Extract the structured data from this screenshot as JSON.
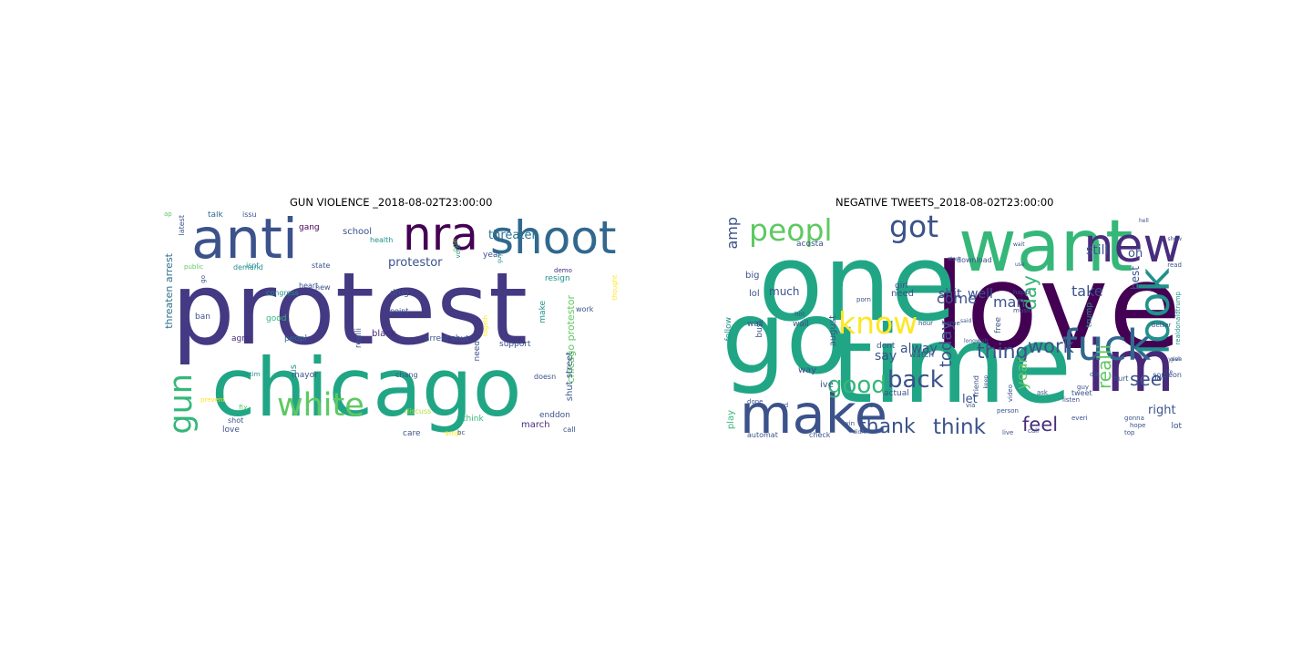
{
  "figure": {
    "panels": [
      {
        "id": "gun-violence",
        "title": "GUN VIOLENCE _2018-08-02T23:00:00",
        "words": [
          {
            "text": "protest",
            "weight": 1.0,
            "color": "#443983"
          },
          {
            "text": "chicago",
            "weight": 0.8,
            "color": "#21a685"
          },
          {
            "text": "anti",
            "weight": 0.55,
            "color": "#3b528b"
          },
          {
            "text": "nra",
            "weight": 0.45,
            "color": "#440154"
          },
          {
            "text": "shoot",
            "weight": 0.45,
            "color": "#31688e"
          },
          {
            "text": "white",
            "weight": 0.32,
            "color": "#5ec962"
          },
          {
            "text": "gun",
            "weight": 0.32,
            "color": "#35b779"
          },
          {
            "text": "threaten",
            "weight": 0.12,
            "color": "#2c728e"
          },
          {
            "text": "protestor",
            "weight": 0.12,
            "color": "#3b528b"
          },
          {
            "text": "threaten arrest",
            "weight": 0.1,
            "color": "#2c728e"
          },
          {
            "text": "chicago protestor",
            "weight": 0.1,
            "color": "#5ec962"
          },
          {
            "text": "shut street",
            "weight": 0.09,
            "color": "#3b528b"
          },
          {
            "text": "march",
            "weight": 0.09,
            "color": "#472d7b"
          },
          {
            "text": "black",
            "weight": 0.09,
            "color": "#482878"
          },
          {
            "text": "school",
            "weight": 0.09,
            "color": "#3b528b"
          },
          {
            "text": "gang",
            "weight": 0.08,
            "color": "#440154"
          },
          {
            "text": "talk",
            "weight": 0.08,
            "color": "#31688e"
          },
          {
            "text": "issu",
            "weight": 0.07,
            "color": "#3b528b"
          },
          {
            "text": "latest",
            "weight": 0.07,
            "color": "#3b528b"
          },
          {
            "text": "public",
            "weight": 0.06,
            "color": "#5ec962"
          },
          {
            "text": "demand",
            "weight": 0.07,
            "color": "#21918c"
          },
          {
            "text": "isnt",
            "weight": 0.07,
            "color": "#21918c"
          },
          {
            "text": "state",
            "weight": 0.07,
            "color": "#3b528b"
          },
          {
            "text": "health",
            "weight": 0.07,
            "color": "#21918c"
          },
          {
            "text": "year",
            "weight": 0.08,
            "color": "#3b528b"
          },
          {
            "text": "resign",
            "weight": 0.08,
            "color": "#21918c"
          },
          {
            "text": "demo",
            "weight": 0.06,
            "color": "#472d7b"
          },
          {
            "text": "one",
            "weight": 0.07,
            "color": "#5ec962"
          },
          {
            "text": "vote",
            "weight": 0.06,
            "color": "#21918c"
          },
          {
            "text": "guy",
            "weight": 0.05,
            "color": "#21918c"
          },
          {
            "text": "go",
            "weight": 0.06,
            "color": "#3b528b"
          },
          {
            "text": "congress",
            "weight": 0.07,
            "color": "#21918c"
          },
          {
            "text": "good",
            "weight": 0.08,
            "color": "#35b779"
          },
          {
            "text": "drug",
            "weight": 0.08,
            "color": "#3b528b"
          },
          {
            "text": "point",
            "weight": 0.07,
            "color": "#3b528b"
          },
          {
            "text": "work",
            "weight": 0.07,
            "color": "#3b528b"
          },
          {
            "text": "ban",
            "weight": 0.08,
            "color": "#3b528b"
          },
          {
            "text": "agre",
            "weight": 0.08,
            "color": "#472d7b"
          },
          {
            "text": "peopl",
            "weight": 0.08,
            "color": "#31688e"
          },
          {
            "text": "realli",
            "weight": 0.08,
            "color": "#3b528b"
          },
          {
            "text": "arrest shut",
            "weight": 0.08,
            "color": "#3b528b"
          },
          {
            "text": "support",
            "weight": 0.08,
            "color": "#3b528b"
          },
          {
            "text": "make",
            "weight": 0.08,
            "color": "#21918c"
          },
          {
            "text": "thought",
            "weight": 0.06,
            "color": "#fde725"
          },
          {
            "text": "victim",
            "weight": 0.06,
            "color": "#21918c"
          },
          {
            "text": "mayor",
            "weight": 0.08,
            "color": "#3b528b"
          },
          {
            "text": "us",
            "weight": 0.09,
            "color": "#21918c"
          },
          {
            "text": "chang",
            "weight": 0.07,
            "color": "#3b528b"
          },
          {
            "text": "need",
            "weight": 0.08,
            "color": "#3b528b"
          },
          {
            "text": "togeth",
            "weight": 0.06,
            "color": "#fde725"
          },
          {
            "text": "prevent",
            "weight": 0.06,
            "color": "#fde725"
          },
          {
            "text": "fix",
            "weight": 0.07,
            "color": "#5ec962"
          },
          {
            "text": "shot",
            "weight": 0.07,
            "color": "#3b528b"
          },
          {
            "text": "love",
            "weight": 0.08,
            "color": "#3b528b"
          },
          {
            "text": "discuss",
            "weight": 0.07,
            "color": "#b5de2b"
          },
          {
            "text": "care",
            "weight": 0.08,
            "color": "#3b528b"
          },
          {
            "text": "think",
            "weight": 0.08,
            "color": "#35b779"
          },
          {
            "text": "amp",
            "weight": 0.07,
            "color": "#fde725"
          },
          {
            "text": "bc",
            "weight": 0.06,
            "color": "#3b528b"
          },
          {
            "text": "doesn",
            "weight": 0.07,
            "color": "#3b528b"
          },
          {
            "text": "enddon",
            "weight": 0.08,
            "color": "#3b528b"
          },
          {
            "text": "call",
            "weight": 0.07,
            "color": "#3b528b"
          },
          {
            "text": "heart",
            "weight": 0.07,
            "color": "#3b528b"
          },
          {
            "text": "new",
            "weight": 0.07,
            "color": "#3b528b"
          },
          {
            "text": "ap",
            "weight": 0.06,
            "color": "#5ec962"
          }
        ]
      },
      {
        "id": "negative-tweets",
        "title": "NEGATIVE TWEETS_2018-08-02T23:00:00",
        "words": [
          {
            "text": "love",
            "weight": 1.0,
            "color": "#440154"
          },
          {
            "text": "one",
            "weight": 0.9,
            "color": "#21a685"
          },
          {
            "text": "time",
            "weight": 0.9,
            "color": "#21a685"
          },
          {
            "text": "go",
            "weight": 0.85,
            "color": "#21a685"
          },
          {
            "text": "want",
            "weight": 0.6,
            "color": "#35b779"
          },
          {
            "text": "im",
            "weight": 0.6,
            "color": "#482878"
          },
          {
            "text": "make",
            "weight": 0.45,
            "color": "#3b528b"
          },
          {
            "text": "new",
            "weight": 0.4,
            "color": "#472d7b"
          },
          {
            "text": "fuck",
            "weight": 0.35,
            "color": "#31688e"
          },
          {
            "text": "look",
            "weight": 0.35,
            "color": "#21918c"
          },
          {
            "text": "peopl",
            "weight": 0.25,
            "color": "#5ec962"
          },
          {
            "text": "got",
            "weight": 0.25,
            "color": "#3b528b"
          },
          {
            "text": "know",
            "weight": 0.25,
            "color": "#fde725"
          },
          {
            "text": "back",
            "weight": 0.2,
            "color": "#3b528b"
          },
          {
            "text": "good",
            "weight": 0.2,
            "color": "#35b779"
          },
          {
            "text": "think",
            "weight": 0.18,
            "color": "#3b528b"
          },
          {
            "text": "thank",
            "weight": 0.17,
            "color": "#3b528b"
          },
          {
            "text": "thing",
            "weight": 0.17,
            "color": "#3b528b"
          },
          {
            "text": "work",
            "weight": 0.16,
            "color": "#3b528b"
          },
          {
            "text": "feel",
            "weight": 0.16,
            "color": "#472d7b"
          },
          {
            "text": "day",
            "weight": 0.16,
            "color": "#35b779"
          },
          {
            "text": "realli",
            "weight": 0.15,
            "color": "#5ec962"
          },
          {
            "text": "see",
            "weight": 0.15,
            "color": "#3b528b"
          },
          {
            "text": "today",
            "weight": 0.14,
            "color": "#3b528b"
          },
          {
            "text": "year",
            "weight": 0.12,
            "color": "#5ec962"
          },
          {
            "text": "come",
            "weight": 0.12,
            "color": "#3b528b"
          },
          {
            "text": "amp",
            "weight": 0.12,
            "color": "#3b528b"
          },
          {
            "text": "man",
            "weight": 0.12,
            "color": "#3b528b"
          },
          {
            "text": "take",
            "weight": 0.12,
            "color": "#3b528b"
          },
          {
            "text": "shit",
            "weight": 0.11,
            "color": "#3b528b"
          },
          {
            "text": "well",
            "weight": 0.11,
            "color": "#3b528b"
          },
          {
            "text": "still",
            "weight": 0.11,
            "color": "#3b528b"
          },
          {
            "text": "oh",
            "weight": 0.1,
            "color": "#3b528b"
          },
          {
            "text": "say",
            "weight": 0.11,
            "color": "#3b528b"
          },
          {
            "text": "alway",
            "weight": 0.11,
            "color": "#3b528b"
          },
          {
            "text": "let",
            "weight": 0.1,
            "color": "#3b528b"
          },
          {
            "text": "right",
            "weight": 0.1,
            "color": "#3b528b"
          },
          {
            "text": "best",
            "weight": 0.09,
            "color": "#3b528b"
          },
          {
            "text": "much",
            "weight": 0.09,
            "color": "#3b528b"
          },
          {
            "text": "need",
            "weight": 0.08,
            "color": "#3b528b"
          },
          {
            "text": "big",
            "weight": 0.08,
            "color": "#3b528b"
          },
          {
            "text": "lol",
            "weight": 0.08,
            "color": "#3b528b"
          },
          {
            "text": "way",
            "weight": 0.08,
            "color": "#3b528b"
          },
          {
            "text": "ive",
            "weight": 0.08,
            "color": "#3b528b"
          },
          {
            "text": "play",
            "weight": 0.08,
            "color": "#35b779"
          },
          {
            "text": "august",
            "weight": 0.08,
            "color": "#3b528b"
          },
          {
            "text": "dont",
            "weight": 0.07,
            "color": "#3b528b"
          },
          {
            "text": "watch",
            "weight": 0.07,
            "color": "#3b528b"
          },
          {
            "text": "follow",
            "weight": 0.07,
            "color": "#21918c"
          },
          {
            "text": "busi",
            "weight": 0.07,
            "color": "#3b528b"
          },
          {
            "text": "wall",
            "weight": 0.07,
            "color": "#3b528b"
          },
          {
            "text": "wall",
            "weight": 0.07,
            "color": "#3b528b"
          },
          {
            "text": "acosta",
            "weight": 0.07,
            "color": "#3b528b"
          },
          {
            "text": "girl",
            "weight": 0.07,
            "color": "#3b528b"
          },
          {
            "text": "trump",
            "weight": 0.07,
            "color": "#21918c"
          },
          {
            "text": "free",
            "weight": 0.07,
            "color": "#3b528b"
          },
          {
            "text": "don",
            "weight": 0.07,
            "color": "#3b528b"
          },
          {
            "text": "lot",
            "weight": 0.07,
            "color": "#3b528b"
          },
          {
            "text": "actual",
            "weight": 0.07,
            "color": "#3b528b"
          },
          {
            "text": "automat",
            "weight": 0.06,
            "color": "#3b528b"
          },
          {
            "text": "check",
            "weight": 0.06,
            "color": "#3b528b"
          },
          {
            "text": "download",
            "weight": 0.06,
            "color": "#3b528b"
          },
          {
            "text": "music",
            "weight": 0.05,
            "color": "#3b528b"
          },
          {
            "text": "happi",
            "weight": 0.05,
            "color": "#3b528b"
          },
          {
            "text": "tweet",
            "weight": 0.06,
            "color": "#3b528b"
          },
          {
            "text": "hurt",
            "weight": 0.06,
            "color": "#3b528b"
          },
          {
            "text": "someon",
            "weight": 0.06,
            "color": "#3b528b"
          },
          {
            "text": "gonna",
            "weight": 0.05,
            "color": "#3b528b"
          },
          {
            "text": "hope",
            "weight": 0.05,
            "color": "#3b528b"
          },
          {
            "text": "top",
            "weight": 0.05,
            "color": "#3b528b"
          },
          {
            "text": "read",
            "weight": 0.05,
            "color": "#3b528b"
          },
          {
            "text": "better",
            "weight": 0.05,
            "color": "#3b528b"
          },
          {
            "text": "friend",
            "weight": 0.06,
            "color": "#3b528b"
          },
          {
            "text": "video",
            "weight": 0.05,
            "color": "#3b528b"
          },
          {
            "text": "listen",
            "weight": 0.05,
            "color": "#3b528b"
          },
          {
            "text": "everi",
            "weight": 0.05,
            "color": "#3b528b"
          },
          {
            "text": "live",
            "weight": 0.05,
            "color": "#3b528b"
          },
          {
            "text": "win",
            "weight": 0.05,
            "color": "#3b528b"
          },
          {
            "text": "ye",
            "weight": 0.05,
            "color": "#3b528b"
          },
          {
            "text": "hour",
            "weight": 0.05,
            "color": "#3b528b"
          },
          {
            "text": "home",
            "weight": 0.05,
            "color": "#3b528b"
          },
          {
            "text": "ask",
            "weight": 0.05,
            "color": "#3b528b"
          },
          {
            "text": "person",
            "weight": 0.05,
            "color": "#3b528b"
          },
          {
            "text": "via",
            "weight": 0.05,
            "color": "#3b528b"
          },
          {
            "text": "show",
            "weight": 0.04,
            "color": "#3b528b"
          },
          {
            "text": "guy",
            "weight": 0.05,
            "color": "#3b528b"
          },
          {
            "text": "die",
            "weight": 0.05,
            "color": "#3b528b"
          },
          {
            "text": "hot",
            "weight": 0.05,
            "color": "#3b528b"
          },
          {
            "text": "porn",
            "weight": 0.05,
            "color": "#3b528b"
          },
          {
            "text": "longwish",
            "weight": 0.04,
            "color": "#3b528b"
          },
          {
            "text": "realdonaldtrump",
            "weight": 0.05,
            "color": "#21918c"
          },
          {
            "text": "done",
            "weight": 0.05,
            "color": "#3b528b"
          },
          {
            "text": "word",
            "weight": 0.05,
            "color": "#3b528b"
          },
          {
            "text": "didnt",
            "weight": 0.04,
            "color": "#3b528b"
          },
          {
            "text": "start",
            "weight": 0.04,
            "color": "#3b528b"
          },
          {
            "text": "wait",
            "weight": 0.04,
            "color": "#3b528b"
          },
          {
            "text": "said",
            "weight": 0.04,
            "color": "#3b528b"
          },
          {
            "text": "keep",
            "weight": 0.04,
            "color": "#3b528b"
          },
          {
            "text": "use",
            "weight": 0.04,
            "color": "#3b528b"
          },
          {
            "text": "call",
            "weight": 0.05,
            "color": "#3b528b"
          },
          {
            "text": "hell",
            "weight": 0.04,
            "color": "#3b528b"
          },
          {
            "text": "yeah",
            "weight": 0.04,
            "color": "#3b528b"
          },
          {
            "text": "life",
            "weight": 0.04,
            "color": "#3b528b"
          },
          {
            "text": "give",
            "weight": 0.04,
            "color": "#3b528b"
          }
        ]
      }
    ]
  }
}
